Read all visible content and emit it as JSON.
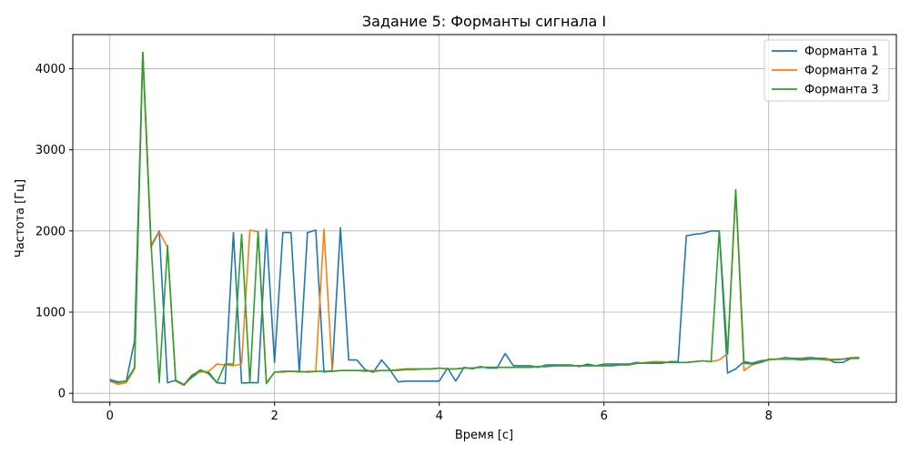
{
  "chart_data": {
    "type": "line",
    "title": "Задание 5: Форманты сигнала I",
    "xlabel": "Время [с]",
    "ylabel": "Частота [Гц]",
    "xlim": [
      -0.45,
      9.55
    ],
    "ylim": [
      -110,
      4420
    ],
    "xticks": [
      0,
      2,
      4,
      6,
      8
    ],
    "yticks": [
      0,
      1000,
      2000,
      3000,
      4000
    ],
    "grid": true,
    "legend_position": "top-right",
    "series": [
      {
        "name": "Форманта 1",
        "color": "#1f77b4",
        "x": [
          0,
          0.1,
          0.2,
          0.3,
          0.4,
          0.5,
          0.6,
          0.7,
          0.8,
          0.9,
          1.0,
          1.1,
          1.2,
          1.3,
          1.4,
          1.5,
          1.6,
          1.7,
          1.8,
          1.9,
          2.0,
          2.1,
          2.2,
          2.3,
          2.4,
          2.5,
          2.6,
          2.7,
          2.8,
          2.9,
          3.0,
          3.1,
          3.2,
          3.3,
          3.4,
          3.5,
          3.6,
          3.7,
          3.8,
          3.9,
          4.0,
          4.1,
          4.2,
          4.3,
          4.4,
          4.5,
          4.6,
          4.7,
          4.8,
          4.9,
          5.0,
          5.1,
          5.2,
          5.3,
          5.4,
          5.5,
          5.6,
          5.7,
          5.8,
          5.9,
          6.0,
          6.1,
          6.2,
          6.3,
          6.4,
          6.5,
          6.6,
          6.7,
          6.8,
          6.9,
          7.0,
          7.1,
          7.2,
          7.3,
          7.4,
          7.5,
          7.6,
          7.7,
          7.8,
          7.9,
          8.0,
          8.1,
          8.2,
          8.3,
          8.4,
          8.5,
          8.6,
          8.7,
          8.8,
          8.9,
          9.0,
          9.1
        ],
        "y": [
          170,
          140,
          150,
          650,
          4200,
          1820,
          2000,
          130,
          160,
          110,
          200,
          270,
          260,
          130,
          120,
          1980,
          125,
          130,
          130,
          2020,
          380,
          1980,
          1980,
          260,
          1980,
          2010,
          260,
          280,
          2040,
          410,
          410,
          290,
          260,
          410,
          290,
          140,
          150,
          150,
          150,
          150,
          150,
          310,
          150,
          320,
          300,
          330,
          310,
          310,
          490,
          340,
          340,
          340,
          320,
          350,
          350,
          350,
          350,
          330,
          360,
          340,
          360,
          360,
          360,
          360,
          380,
          370,
          370,
          370,
          390,
          390,
          1940,
          1960,
          1970,
          2000,
          2000,
          250,
          300,
          390,
          370,
          400,
          410,
          420,
          440,
          430,
          430,
          440,
          430,
          430,
          380,
          380,
          430,
          430
        ]
      },
      {
        "name": "Форманта 2",
        "color": "#ff7f0e",
        "x": [
          0,
          0.1,
          0.2,
          0.3,
          0.4,
          0.5,
          0.6,
          0.7,
          0.8,
          0.9,
          1.0,
          1.1,
          1.2,
          1.3,
          1.4,
          1.5,
          1.6,
          1.7,
          1.8,
          1.9,
          2.0,
          2.1,
          2.2,
          2.3,
          2.4,
          2.5,
          2.6,
          2.7,
          2.8,
          2.9,
          3.0,
          3.1,
          3.2,
          3.3,
          3.4,
          3.5,
          3.6,
          3.7,
          3.8,
          3.9,
          4.0,
          4.1,
          4.2,
          4.3,
          4.4,
          4.5,
          4.6,
          4.7,
          4.8,
          4.9,
          5.0,
          5.1,
          5.2,
          5.3,
          5.4,
          5.5,
          5.6,
          5.7,
          5.8,
          5.9,
          6.0,
          6.1,
          6.2,
          6.3,
          6.4,
          6.5,
          6.6,
          6.7,
          6.8,
          6.9,
          7.0,
          7.1,
          7.2,
          7.3,
          7.4,
          7.5,
          7.6,
          7.7,
          7.8,
          7.9,
          8.0,
          8.1,
          8.2,
          8.3,
          8.4,
          8.5,
          8.6,
          8.7,
          8.8,
          8.9,
          9.0,
          9.1
        ],
        "y": [
          150,
          110,
          130,
          300,
          4200,
          1800,
          1990,
          1800,
          150,
          110,
          230,
          260,
          270,
          360,
          350,
          340,
          360,
          2010,
          1990,
          130,
          260,
          260,
          270,
          260,
          270,
          270,
          2020,
          270,
          280,
          280,
          280,
          270,
          280,
          280,
          280,
          280,
          290,
          290,
          300,
          300,
          310,
          300,
          300,
          310,
          310,
          320,
          320,
          320,
          320,
          320,
          320,
          320,
          330,
          330,
          340,
          340,
          340,
          340,
          340,
          340,
          340,
          340,
          350,
          350,
          370,
          380,
          390,
          390,
          380,
          380,
          380,
          390,
          400,
          390,
          410,
          490,
          2490,
          280,
          350,
          380,
          410,
          420,
          430,
          420,
          420,
          420,
          420,
          420,
          420,
          420,
          440,
          440
        ]
      },
      {
        "name": "Форманта 3",
        "color": "#2ca02c",
        "x": [
          0,
          0.1,
          0.2,
          0.3,
          0.4,
          0.5,
          0.6,
          0.7,
          0.8,
          0.9,
          1.0,
          1.1,
          1.2,
          1.3,
          1.4,
          1.5,
          1.6,
          1.7,
          1.8,
          1.9,
          2.0,
          2.1,
          2.2,
          2.3,
          2.4,
          2.5,
          2.6,
          2.7,
          2.8,
          2.9,
          3.0,
          3.1,
          3.2,
          3.3,
          3.4,
          3.5,
          3.6,
          3.7,
          3.8,
          3.9,
          4.0,
          4.1,
          4.2,
          4.3,
          4.4,
          4.5,
          4.6,
          4.7,
          4.8,
          4.9,
          5.0,
          5.1,
          5.2,
          5.3,
          5.4,
          5.5,
          5.6,
          5.7,
          5.8,
          5.9,
          6.0,
          6.1,
          6.2,
          6.3,
          6.4,
          6.5,
          6.6,
          6.7,
          6.8,
          6.9,
          7.0,
          7.1,
          7.2,
          7.3,
          7.4,
          7.5,
          7.6,
          7.7,
          7.8,
          7.9,
          8.0,
          8.1,
          8.2,
          8.3,
          8.4,
          8.5,
          8.6,
          8.7,
          8.8,
          8.9,
          9.0,
          9.1
        ],
        "y": [
          160,
          130,
          150,
          320,
          4200,
          1850,
          130,
          1820,
          150,
          100,
          220,
          290,
          240,
          130,
          360,
          360,
          1960,
          130,
          1990,
          120,
          260,
          270,
          270,
          270,
          260,
          270,
          270,
          270,
          280,
          280,
          280,
          280,
          270,
          280,
          280,
          290,
          300,
          300,
          300,
          300,
          310,
          300,
          300,
          310,
          310,
          320,
          320,
          320,
          320,
          320,
          320,
          320,
          330,
          330,
          340,
          340,
          340,
          340,
          340,
          340,
          340,
          340,
          350,
          350,
          370,
          370,
          380,
          380,
          380,
          380,
          380,
          390,
          400,
          390,
          2000,
          480,
          2510,
          370,
          360,
          380,
          420,
          420,
          420,
          420,
          410,
          420,
          420,
          410,
          410,
          420,
          430,
          440
        ]
      }
    ]
  }
}
